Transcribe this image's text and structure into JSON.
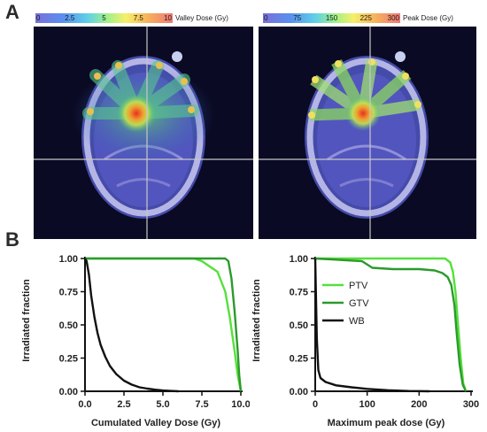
{
  "panels": {
    "a_label": "A",
    "b_label": "B"
  },
  "colorbars": {
    "valley": {
      "ticks": [
        "0",
        "2.5",
        "5",
        "7.5",
        "10"
      ],
      "title": "Valley Dose (Gy)"
    },
    "peak": {
      "ticks": [
        "0",
        "75",
        "150",
        "225",
        "300"
      ],
      "title": "Peak Dose (Gy)"
    }
  },
  "colors": {
    "ptv": "#55e03a",
    "gtv": "#2c9a2c",
    "wb": "#111111",
    "scan_bg": "#0a0a24"
  },
  "chart_data": [
    {
      "type": "line",
      "xlabel": "Cumulated Valley Dose (Gy)",
      "ylabel": "Irradiated fraction",
      "xlim": [
        0,
        10
      ],
      "ylim": [
        0,
        1
      ],
      "xticks": [
        "0.0",
        "2.5",
        "5.0",
        "7.5",
        "10.0"
      ],
      "yticks": [
        "0.00",
        "0.25",
        "0.50",
        "0.75",
        "1.00"
      ],
      "series": [
        {
          "key": "ptv",
          "x": [
            0,
            7.0,
            7.5,
            8.0,
            8.5,
            9.0,
            9.3,
            9.6,
            9.8,
            10.0
          ],
          "y": [
            1.0,
            1.0,
            0.98,
            0.94,
            0.9,
            0.75,
            0.55,
            0.3,
            0.12,
            0.0
          ]
        },
        {
          "key": "gtv",
          "x": [
            0,
            9.0,
            9.2,
            9.4,
            9.6,
            9.8,
            9.9,
            10.0
          ],
          "y": [
            1.0,
            1.0,
            0.98,
            0.85,
            0.6,
            0.3,
            0.12,
            0.0
          ]
        },
        {
          "key": "wb",
          "x": [
            0,
            0.1,
            0.25,
            0.4,
            0.6,
            0.8,
            1.0,
            1.3,
            1.6,
            2.0,
            2.5,
            3.0,
            3.5,
            4.0,
            4.5,
            5.0,
            5.5,
            6.0
          ],
          "y": [
            1.0,
            0.98,
            0.88,
            0.72,
            0.56,
            0.44,
            0.35,
            0.26,
            0.19,
            0.13,
            0.08,
            0.05,
            0.03,
            0.02,
            0.012,
            0.006,
            0.003,
            0.0
          ]
        }
      ]
    },
    {
      "type": "line",
      "xlabel": "Maximum peak dose (Gy)",
      "ylabel": "Irradiated fraction",
      "xlim": [
        0,
        300
      ],
      "ylim": [
        0,
        1
      ],
      "xticks": [
        "0",
        "100",
        "200",
        "300"
      ],
      "yticks": [
        "0.00",
        "0.25",
        "0.50",
        "0.75",
        "1.00"
      ],
      "legend": {
        "position": "top-left",
        "entries": [
          {
            "key": "ptv",
            "label": "PTV"
          },
          {
            "key": "gtv",
            "label": "GTV"
          },
          {
            "key": "wb",
            "label": "WB"
          }
        ]
      },
      "series": [
        {
          "key": "ptv",
          "x": [
            0,
            250,
            260,
            265,
            270,
            275,
            280,
            285,
            290
          ],
          "y": [
            1.0,
            1.0,
            0.97,
            0.9,
            0.75,
            0.5,
            0.25,
            0.06,
            0.0
          ]
        },
        {
          "key": "gtv",
          "x": [
            0,
            90,
            110,
            150,
            200,
            230,
            245,
            255,
            262,
            268,
            272,
            278,
            284,
            290
          ],
          "y": [
            1.0,
            0.98,
            0.93,
            0.92,
            0.92,
            0.91,
            0.89,
            0.86,
            0.8,
            0.65,
            0.45,
            0.2,
            0.05,
            0.0
          ]
        },
        {
          "key": "wb",
          "x": [
            0,
            3,
            6,
            10,
            20,
            40,
            70,
            100,
            140,
            180,
            220
          ],
          "y": [
            1.0,
            0.4,
            0.16,
            0.1,
            0.07,
            0.045,
            0.03,
            0.018,
            0.008,
            0.002,
            0.0
          ]
        }
      ]
    }
  ]
}
